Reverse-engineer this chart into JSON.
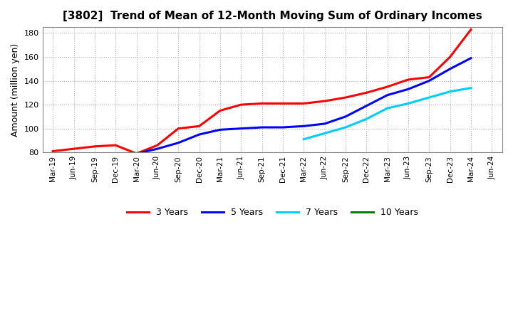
{
  "title": "[3802]  Trend of Mean of 12-Month Moving Sum of Ordinary Incomes",
  "ylabel": "Amount (million yen)",
  "ylim": [
    80,
    185
  ],
  "yticks": [
    80,
    100,
    120,
    140,
    160,
    180
  ],
  "background_color": "#ffffff",
  "grid_color": "#aaaaaa",
  "x_all": [
    "Mar-19",
    "Jun-19",
    "Sep-19",
    "Dec-19",
    "Mar-20",
    "Jun-20",
    "Sep-20",
    "Dec-20",
    "Mar-21",
    "Jun-21",
    "Sep-21",
    "Dec-21",
    "Mar-22",
    "Jun-22",
    "Sep-22",
    "Dec-22",
    "Mar-23",
    "Jun-23",
    "Sep-23",
    "Dec-23",
    "Mar-24",
    "Jun-24"
  ],
  "series": {
    "3 Years": {
      "color": "#ff0000",
      "x": [
        "Mar-19",
        "Jun-19",
        "Sep-19",
        "Dec-19",
        "Mar-20",
        "Jun-20",
        "Sep-20",
        "Dec-20",
        "Mar-21",
        "Jun-21",
        "Sep-21",
        "Dec-21",
        "Mar-22",
        "Jun-22",
        "Sep-22",
        "Dec-22",
        "Mar-23",
        "Jun-23",
        "Sep-23",
        "Dec-23",
        "Mar-24"
      ],
      "y": [
        81,
        83,
        85,
        86,
        79,
        86,
        100,
        102,
        115,
        120,
        121,
        121,
        121,
        123,
        126,
        130,
        135,
        141,
        143,
        160,
        183
      ]
    },
    "5 Years": {
      "color": "#0000ff",
      "x": [
        "Mar-20",
        "Jun-20",
        "Sep-20",
        "Dec-20",
        "Mar-21",
        "Jun-21",
        "Sep-21",
        "Dec-21",
        "Mar-22",
        "Jun-22",
        "Sep-22",
        "Dec-22",
        "Mar-23",
        "Jun-23",
        "Sep-23",
        "Dec-23",
        "Mar-24"
      ],
      "y": [
        79,
        83,
        88,
        95,
        99,
        100,
        101,
        101,
        102,
        104,
        110,
        119,
        128,
        133,
        140,
        150,
        159
      ]
    },
    "7 Years": {
      "color": "#00ccff",
      "x": [
        "Mar-22",
        "Jun-22",
        "Sep-22",
        "Dec-22",
        "Mar-23",
        "Jun-23",
        "Sep-23",
        "Dec-23",
        "Mar-24"
      ],
      "y": [
        91,
        96,
        101,
        108,
        117,
        121,
        126,
        131,
        134
      ]
    },
    "10 Years": {
      "color": "#008000",
      "x": [],
      "y": []
    }
  }
}
